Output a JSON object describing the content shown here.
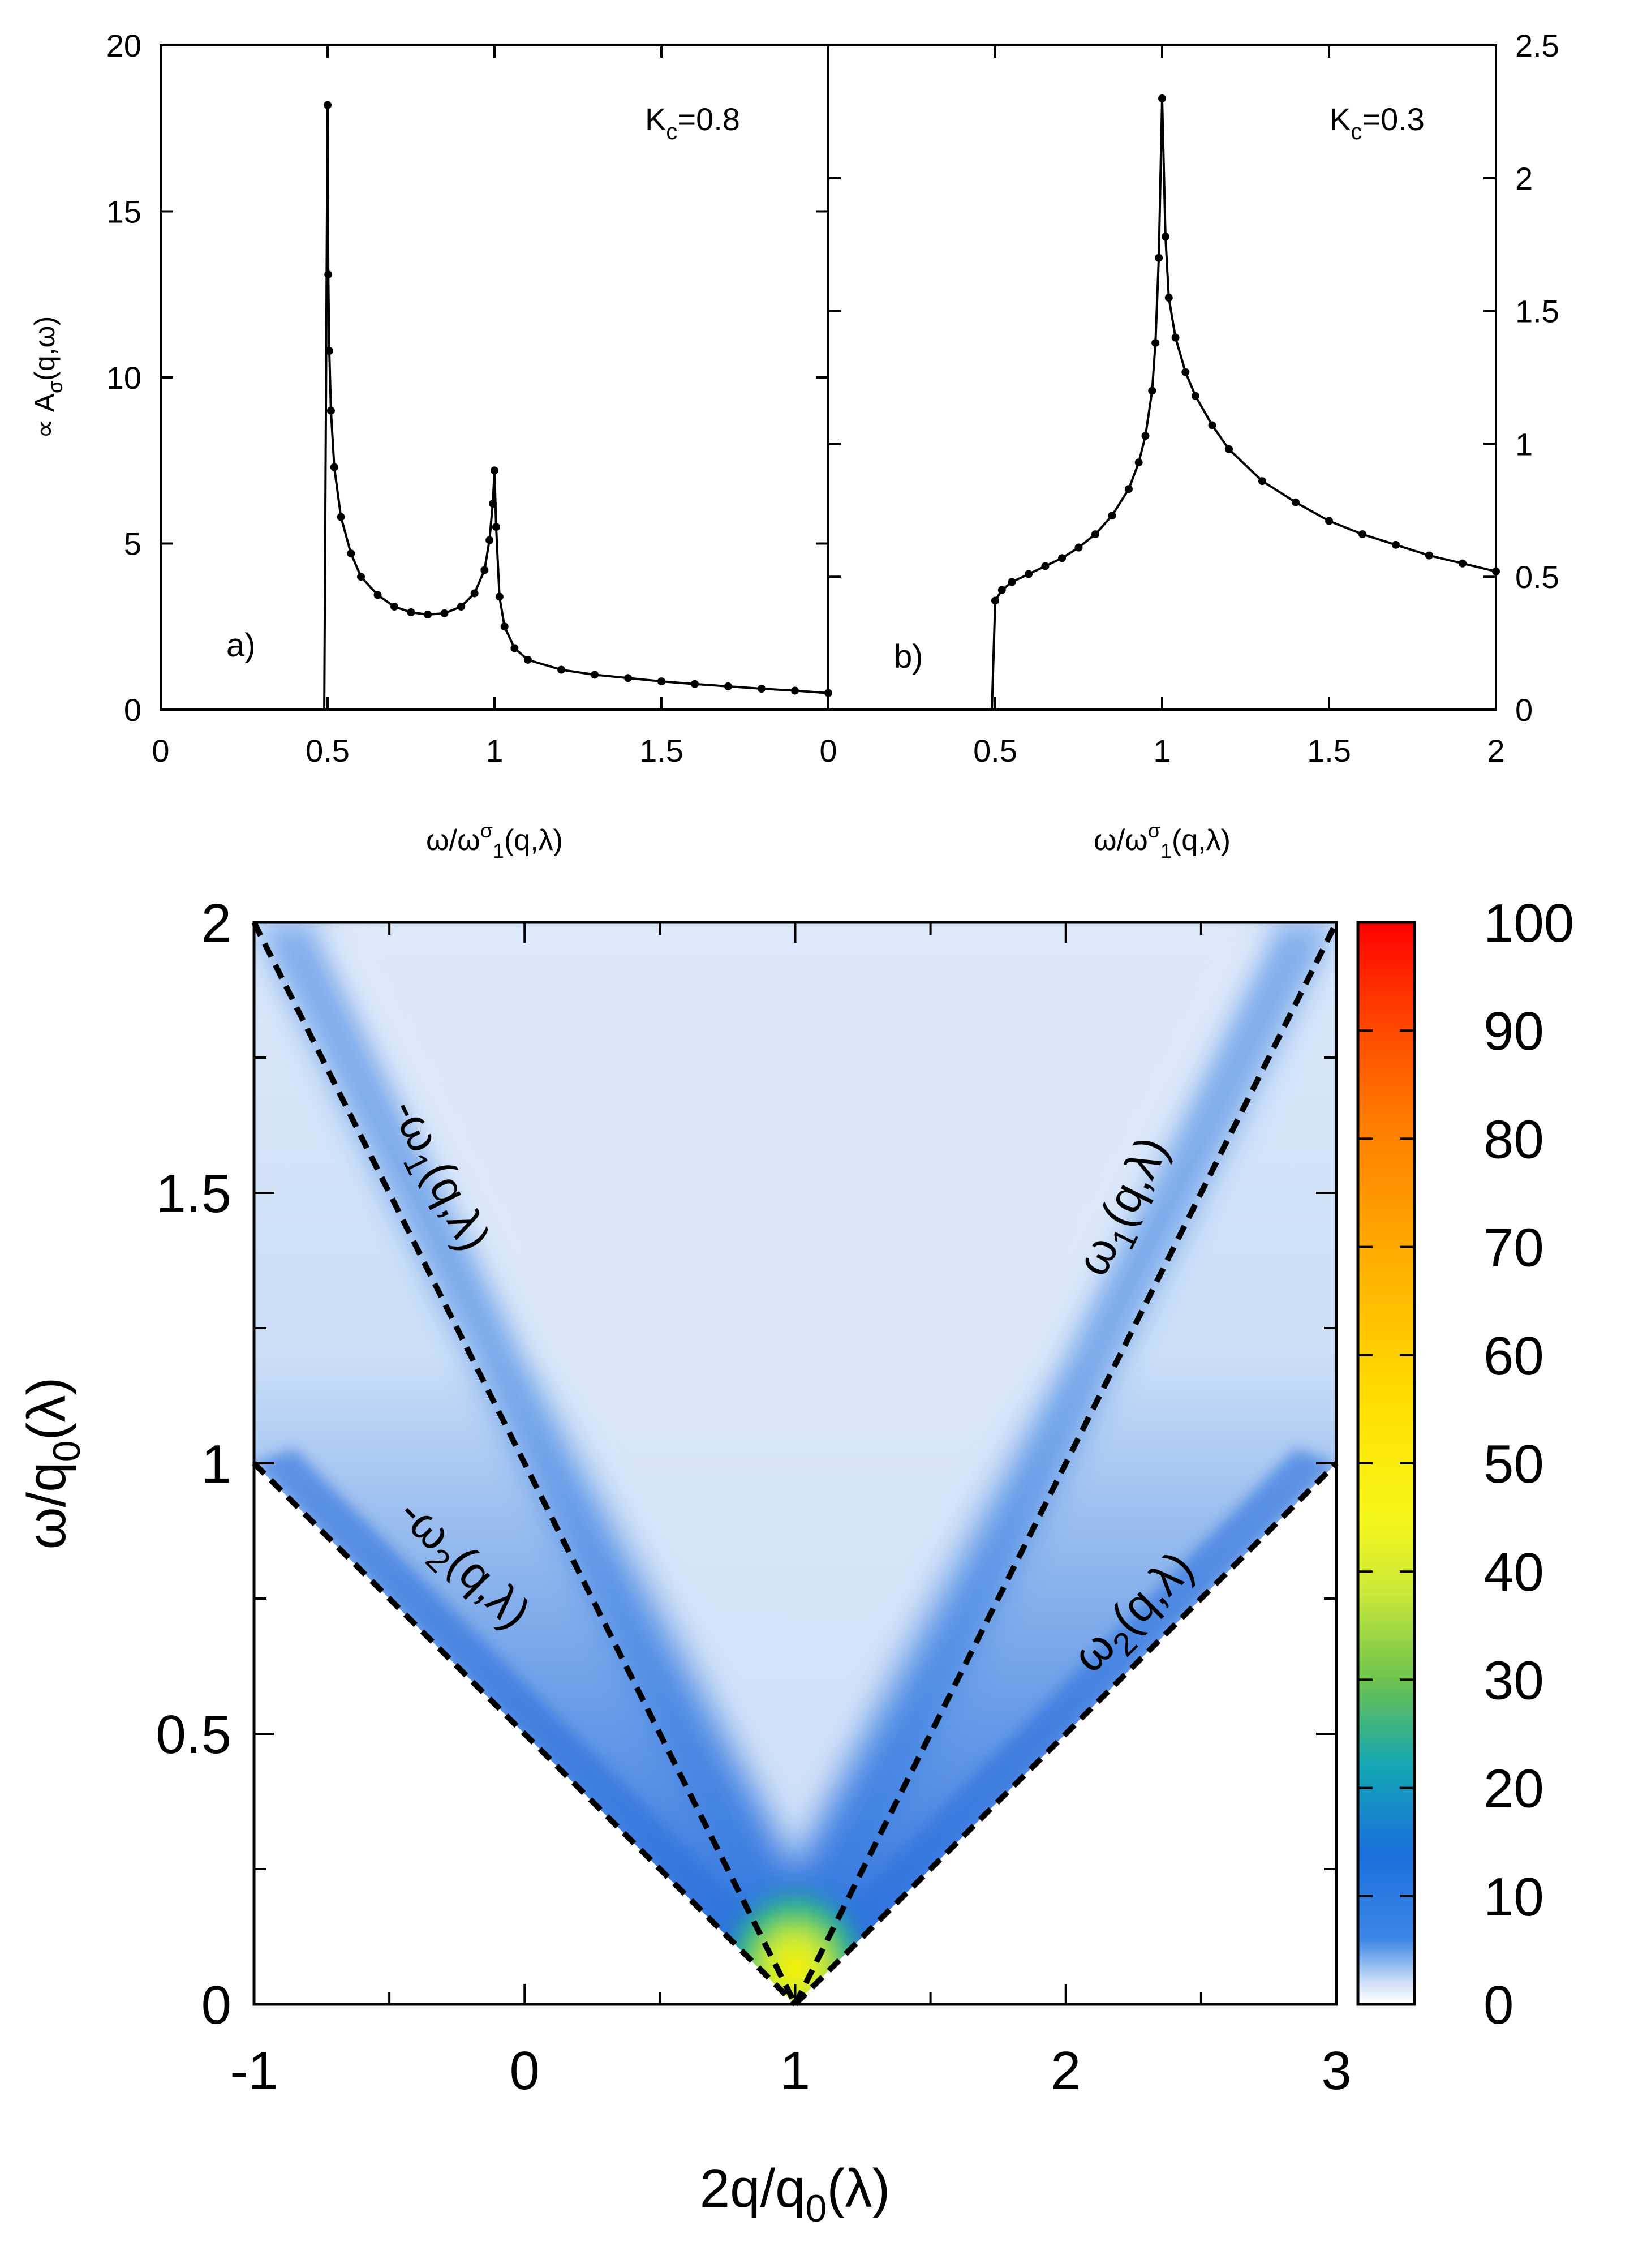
{
  "chart_data": [
    {
      "panel": "a",
      "type": "line",
      "panel_label": "a)",
      "annotation": "K_c=0.8",
      "ylabel": "∝ A_σ(q,ω)",
      "xlabel": "ω/ω^σ_1(q,λ)",
      "xlim": [
        0,
        2
      ],
      "ylim": [
        0,
        20
      ],
      "xticks": [
        0,
        0.5,
        1,
        1.5
      ],
      "yticks": [
        0,
        5,
        10,
        15,
        20
      ],
      "series": [
        {
          "name": "A_sigma",
          "x": [
            0,
            0.49,
            0.5,
            0.502,
            0.505,
            0.51,
            0.52,
            0.54,
            0.57,
            0.6,
            0.65,
            0.7,
            0.75,
            0.8,
            0.85,
            0.9,
            0.94,
            0.97,
            0.985,
            0.995,
            1.0,
            1.005,
            1.015,
            1.03,
            1.06,
            1.1,
            1.2,
            1.3,
            1.4,
            1.5,
            1.6,
            1.7,
            1.8,
            1.9,
            2.0
          ],
          "values": [
            0,
            0,
            18.2,
            13.1,
            10.8,
            9.0,
            7.3,
            5.8,
            4.7,
            4.0,
            3.45,
            3.1,
            2.93,
            2.86,
            2.9,
            3.1,
            3.5,
            4.2,
            5.1,
            6.2,
            7.2,
            5.5,
            3.4,
            2.5,
            1.85,
            1.5,
            1.2,
            1.05,
            0.95,
            0.85,
            0.77,
            0.7,
            0.63,
            0.57,
            0.5
          ]
        }
      ]
    },
    {
      "panel": "b",
      "type": "line",
      "panel_label": "b)",
      "annotation": "K_c=0.3",
      "ylabel": "",
      "xlabel": "ω/ω^σ_1(q,λ)",
      "xlim": [
        0,
        2
      ],
      "ylim": [
        0,
        2.5
      ],
      "xticks": [
        0,
        0.5,
        1,
        1.5,
        2
      ],
      "yticks": [
        0,
        0.5,
        1,
        1.5,
        2,
        2.5
      ],
      "series": [
        {
          "name": "A_sigma",
          "x": [
            0,
            0.49,
            0.5,
            0.52,
            0.55,
            0.6,
            0.65,
            0.7,
            0.75,
            0.8,
            0.85,
            0.9,
            0.93,
            0.95,
            0.97,
            0.98,
            0.99,
            1.0,
            1.01,
            1.02,
            1.04,
            1.07,
            1.1,
            1.15,
            1.2,
            1.3,
            1.4,
            1.5,
            1.6,
            1.7,
            1.8,
            1.9,
            2.0
          ],
          "values": [
            0,
            0,
            0.41,
            0.45,
            0.48,
            0.51,
            0.54,
            0.57,
            0.61,
            0.66,
            0.73,
            0.83,
            0.93,
            1.03,
            1.2,
            1.38,
            1.7,
            2.3,
            1.78,
            1.55,
            1.4,
            1.27,
            1.18,
            1.07,
            0.98,
            0.86,
            0.78,
            0.71,
            0.66,
            0.62,
            0.58,
            0.55,
            0.52
          ]
        }
      ]
    },
    {
      "panel": "c",
      "type": "heatmap",
      "xlabel": "2q/q_0(λ)",
      "ylabel": "ω/q_0(λ)",
      "xlim": [
        -1,
        3
      ],
      "ylim": [
        0,
        2
      ],
      "xticks": [
        -1,
        0,
        1,
        2,
        3
      ],
      "yticks": [
        0,
        0.5,
        1,
        1.5,
        2
      ],
      "colorbar": {
        "min": 0,
        "max": 100,
        "ticks": [
          0,
          10,
          20,
          30,
          40,
          50,
          60,
          70,
          80,
          90,
          100
        ]
      },
      "dashed_lines": [
        {
          "label": "-ω_1(q,λ)",
          "from": [
            -1,
            2
          ],
          "to": [
            1,
            0
          ]
        },
        {
          "label": "-ω_2(q,λ)",
          "from": [
            -1,
            1
          ],
          "to": [
            1,
            0
          ]
        },
        {
          "label": "ω_1(q,λ)",
          "from": [
            1,
            0
          ],
          "to": [
            3,
            2
          ]
        },
        {
          "label": "ω_2(q,λ)",
          "from": [
            1,
            0
          ],
          "to": [
            3,
            1
          ]
        }
      ]
    }
  ],
  "colors": {
    "curve": "#000000",
    "heat_low": "#ffffff",
    "heat_mid": "#1f6fd8",
    "heat_high": "#ff0000"
  }
}
